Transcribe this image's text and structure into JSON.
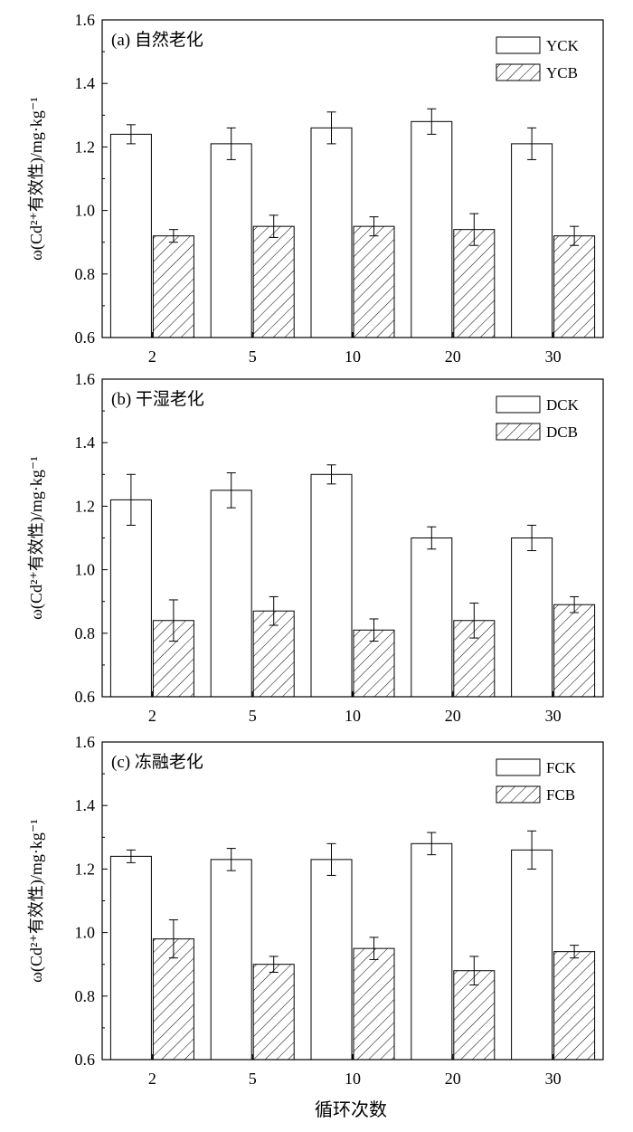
{
  "figure": {
    "xlabel": "循环次数"
  },
  "chart_data": [
    {
      "type": "bar",
      "title": "(a) 自然老化",
      "ylabel": "ω(Cd²⁺有效性)/mg·kg⁻¹",
      "xlabel": "",
      "categories": [
        "2",
        "5",
        "10",
        "20",
        "30"
      ],
      "ylim": [
        0.6,
        1.6
      ],
      "yticks": [
        "0.6",
        "0.8",
        "1.0",
        "1.2",
        "1.4",
        "1.6"
      ],
      "legend_position": "top-right",
      "grid": false,
      "series": [
        {
          "name": "YCK",
          "pattern": "plain",
          "values": [
            1.24,
            1.21,
            1.26,
            1.28,
            1.21
          ],
          "errors": [
            0.03,
            0.05,
            0.05,
            0.04,
            0.05
          ]
        },
        {
          "name": "YCB",
          "pattern": "hatched",
          "values": [
            0.92,
            0.95,
            0.95,
            0.94,
            0.92
          ],
          "errors": [
            0.02,
            0.035,
            0.03,
            0.05,
            0.03
          ]
        }
      ]
    },
    {
      "type": "bar",
      "title": "(b) 干湿老化",
      "ylabel": "ω(Cd²⁺有效性)/mg·kg⁻¹",
      "xlabel": "",
      "categories": [
        "2",
        "5",
        "10",
        "20",
        "30"
      ],
      "ylim": [
        0.6,
        1.6
      ],
      "yticks": [
        "0.6",
        "0.8",
        "1.0",
        "1.2",
        "1.4",
        "1.6"
      ],
      "legend_position": "top-right",
      "grid": false,
      "series": [
        {
          "name": "DCK",
          "pattern": "plain",
          "values": [
            1.22,
            1.25,
            1.3,
            1.1,
            1.1
          ],
          "errors": [
            0.08,
            0.055,
            0.03,
            0.035,
            0.04
          ]
        },
        {
          "name": "DCB",
          "pattern": "hatched",
          "values": [
            0.84,
            0.87,
            0.81,
            0.84,
            0.89
          ],
          "errors": [
            0.065,
            0.045,
            0.035,
            0.055,
            0.025
          ]
        }
      ]
    },
    {
      "type": "bar",
      "title": "(c) 冻融老化",
      "ylabel": "ω(Cd²⁺有效性)/mg·kg⁻¹",
      "xlabel": "循环次数",
      "categories": [
        "2",
        "5",
        "10",
        "20",
        "30"
      ],
      "ylim": [
        0.6,
        1.6
      ],
      "yticks": [
        "0.6",
        "0.8",
        "1.0",
        "1.2",
        "1.4",
        "1.6"
      ],
      "legend_position": "top-right",
      "grid": false,
      "series": [
        {
          "name": "FCK",
          "pattern": "plain",
          "values": [
            1.24,
            1.23,
            1.23,
            1.28,
            1.26
          ],
          "errors": [
            0.02,
            0.035,
            0.05,
            0.035,
            0.06
          ]
        },
        {
          "name": "FCB",
          "pattern": "hatched",
          "values": [
            0.98,
            0.9,
            0.95,
            0.88,
            0.94
          ],
          "errors": [
            0.06,
            0.025,
            0.035,
            0.045,
            0.02
          ]
        }
      ]
    }
  ]
}
